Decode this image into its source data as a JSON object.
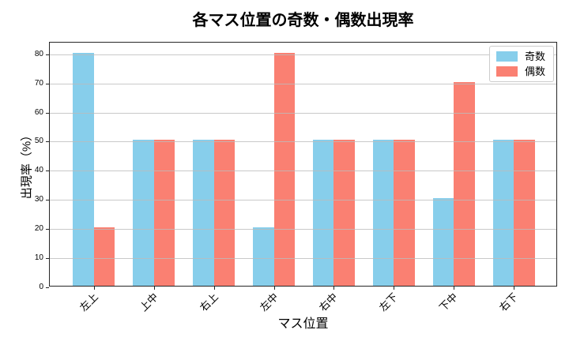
{
  "title": "各マス位置の奇数・偶数出現率",
  "chart_data": {
    "type": "bar",
    "title": "各マス位置の奇数・偶数出現率",
    "xlabel": "マス位置",
    "ylabel": "出現率（%）",
    "categories": [
      "左上",
      "上中",
      "右上",
      "左中",
      "右中",
      "左下",
      "下中",
      "右下"
    ],
    "series": [
      {
        "name": "奇数",
        "color": "#87CEEB",
        "values": [
          80,
          50,
          50,
          20,
          50,
          50,
          30,
          50
        ]
      },
      {
        "name": "偶数",
        "color": "#FA8072",
        "values": [
          20,
          50,
          50,
          80,
          50,
          50,
          70,
          50
        ]
      }
    ],
    "ylim": [
      0,
      84
    ],
    "yticks": [
      0,
      10,
      20,
      30,
      40,
      50,
      60,
      70,
      80
    ],
    "grid": true,
    "legend_position": "upper right",
    "bar_width_frac": 0.35,
    "x_margin_frac": 0.735,
    "x_span_extra": 0.47
  }
}
